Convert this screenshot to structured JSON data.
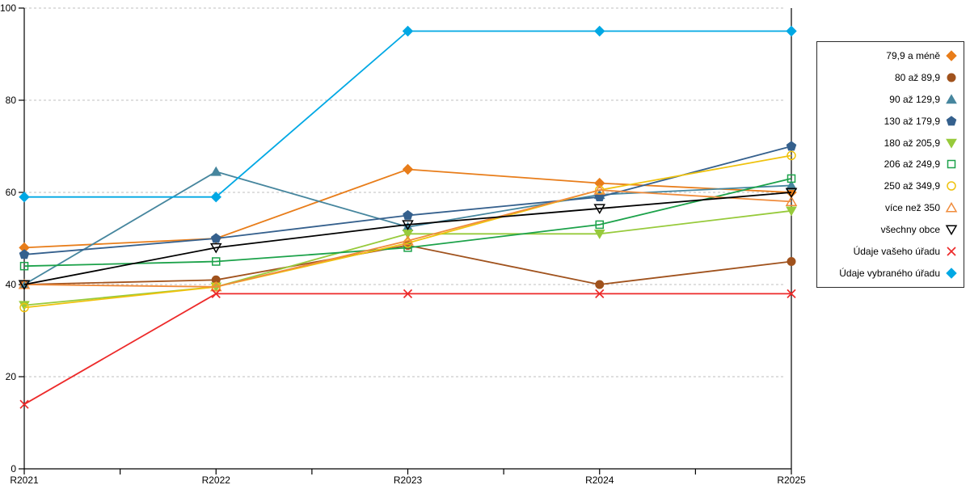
{
  "chart_data": {
    "type": "line",
    "title": "",
    "xlabel": "",
    "ylabel": "",
    "x_labels": [
      "R2021",
      "R2022",
      "R2023",
      "R2024",
      "R2025"
    ],
    "ylim": [
      0,
      100
    ],
    "y_ticks": [
      0,
      20,
      40,
      60,
      80,
      100
    ],
    "grid": "horizontal-dashed",
    "legend_position": "right",
    "series": [
      {
        "name": "79,9 a méně",
        "color": "#E87D1A",
        "marker": "diamond",
        "filled": true,
        "values": [
          48,
          50,
          65,
          62,
          60
        ]
      },
      {
        "name": "80 až 89,9",
        "color": "#A0521D",
        "marker": "circle",
        "filled": true,
        "values": [
          40,
          41,
          48.5,
          40,
          45
        ]
      },
      {
        "name": "90 až 129,9",
        "color": "#46869E",
        "marker": "triangle-up",
        "filled": true,
        "values": [
          40,
          64.5,
          52.5,
          59.5,
          61.5
        ]
      },
      {
        "name": "130 až 179,9",
        "color": "#35608D",
        "marker": "pentagon",
        "filled": true,
        "values": [
          46.5,
          50,
          55,
          59,
          70
        ]
      },
      {
        "name": "180 až 205,9",
        "color": "#97CA3B",
        "marker": "triangle-down",
        "filled": true,
        "values": [
          35.5,
          39.5,
          51,
          51,
          56
        ]
      },
      {
        "name": "206 až 249,9",
        "color": "#1CA24A",
        "marker": "square",
        "filled": false,
        "values": [
          44,
          45,
          48,
          53,
          63
        ]
      },
      {
        "name": "250 až 349,9",
        "color": "#EFC20E",
        "marker": "circle",
        "filled": false,
        "values": [
          35,
          39.5,
          49,
          60.5,
          68
        ]
      },
      {
        "name": "více než 350",
        "color": "#F08C3C",
        "marker": "triangle-up",
        "filled": false,
        "values": [
          40,
          39.5,
          49.5,
          60.5,
          58
        ]
      },
      {
        "name": "všechny obce",
        "color": "#000000",
        "marker": "triangle-down",
        "filled": false,
        "values": [
          40,
          48,
          53,
          56.5,
          60
        ]
      },
      {
        "name": "Údaje vašeho úřadu",
        "color": "#ED2A2A",
        "marker": "x",
        "filled": false,
        "values": [
          14,
          38,
          38,
          38,
          38
        ]
      },
      {
        "name": "Údaje vybraného úřadu",
        "color": "#00A8E4",
        "marker": "diamond",
        "filled": true,
        "values": [
          59,
          59,
          95,
          95,
          95
        ]
      }
    ]
  }
}
